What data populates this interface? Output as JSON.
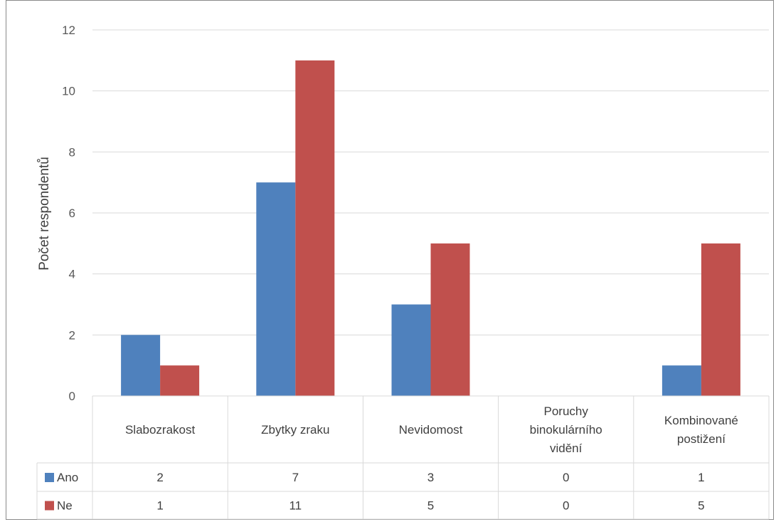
{
  "chart_data": {
    "type": "bar",
    "title": "",
    "xlabel": "",
    "ylabel": "Počet respondentů",
    "ylim": [
      0,
      12
    ],
    "yticks": [
      0,
      2,
      4,
      6,
      8,
      10,
      12
    ],
    "grid": true,
    "categories": [
      [
        "Slabozrakost"
      ],
      [
        "Zbytky zraku"
      ],
      [
        "Nevidomost"
      ],
      [
        "Poruchy",
        "binokulárního",
        "vidění"
      ],
      [
        "Kombinované",
        "postižení"
      ]
    ],
    "series": [
      {
        "name": "Ano",
        "color": "#4f81bd",
        "values": [
          2,
          7,
          3,
          0,
          1
        ]
      },
      {
        "name": "Ne",
        "color": "#c0504d",
        "values": [
          1,
          11,
          5,
          0,
          5
        ]
      }
    ],
    "legend": "data-table"
  }
}
